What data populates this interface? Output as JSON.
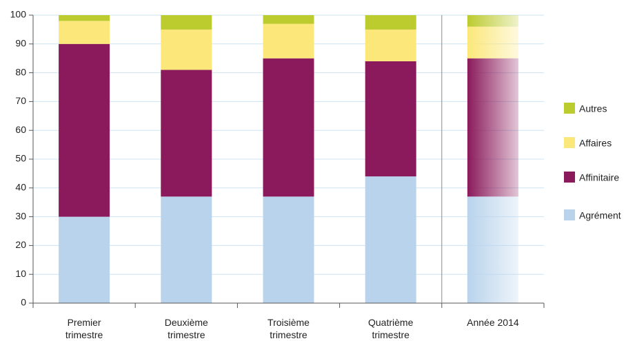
{
  "chart_data": {
    "type": "stacked-bar",
    "categories": [
      "Premier trimestre",
      "Deuxième trimestre",
      "Troisième trimestre",
      "Quatrième trimestre",
      "Année 2014"
    ],
    "series": [
      {
        "name": "Agrément",
        "color": "#b9d3ec",
        "values": [
          30,
          37,
          37,
          44,
          37
        ]
      },
      {
        "name": "Affinitaire",
        "color": "#8a1a5b",
        "values": [
          60,
          44,
          48,
          40,
          48
        ]
      },
      {
        "name": "Affaires",
        "color": "#fbe77a",
        "values": [
          8,
          14,
          12,
          11,
          11
        ]
      },
      {
        "name": "Autres",
        "color": "#bccb2e",
        "values": [
          2,
          5,
          3,
          5,
          4
        ]
      }
    ],
    "ylim": [
      0,
      100
    ],
    "yticks": [
      0,
      10,
      20,
      30,
      40,
      50,
      60,
      70,
      80,
      90,
      100
    ],
    "grid": true,
    "legend": "right"
  }
}
